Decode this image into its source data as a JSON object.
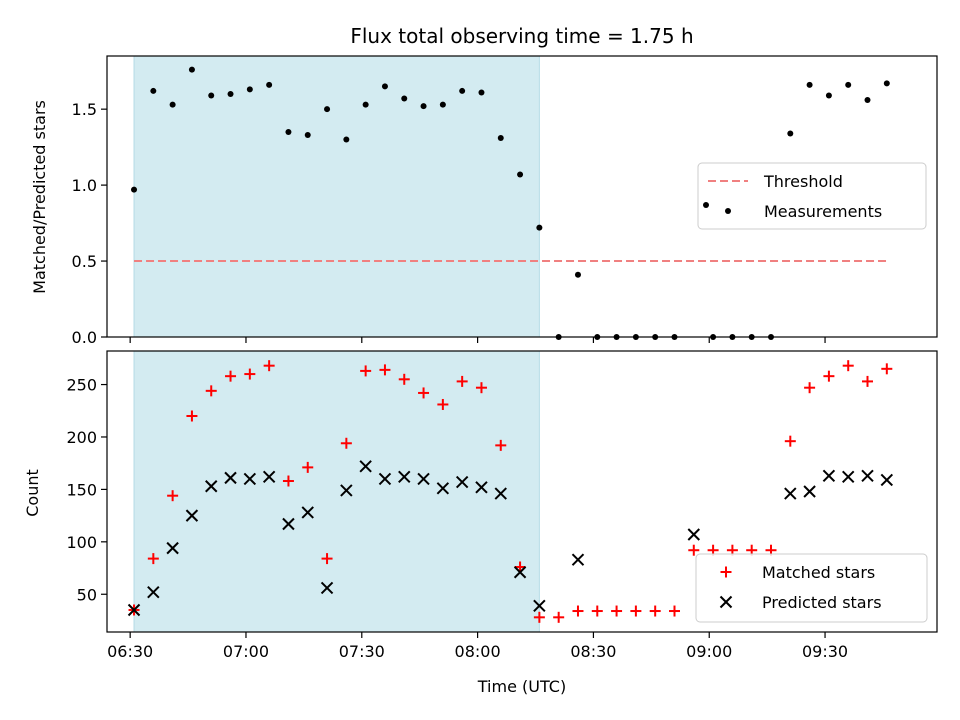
{
  "chart_data": [
    {
      "type": "scatter",
      "title": "Flux total observing time = 1.75 h",
      "ylabel": "Matched/Predicted stars",
      "xlabel": "",
      "ylim": [
        0,
        1.85
      ],
      "xlim": [
        "06:24",
        "09:59"
      ],
      "yticks": [
        "0.0",
        "0.5",
        "1.0",
        "1.5"
      ],
      "ytick_values": [
        0,
        0.5,
        1.0,
        1.5
      ],
      "legend_position": "center-right",
      "shaded_region": {
        "start": "06:31",
        "end": "08:16",
        "color": "#d3ebf1"
      },
      "series": [
        {
          "name": "Threshold",
          "style": "dashed-line",
          "color": "#f08080",
          "points": [
            {
              "x": "06:31",
              "y": 0.5
            },
            {
              "x": "09:46",
              "y": 0.5
            }
          ]
        },
        {
          "name": "Measurements",
          "style": "dot",
          "color": "#000000",
          "points": [
            {
              "x": "06:31",
              "y": 0.97
            },
            {
              "x": "06:36",
              "y": 1.62
            },
            {
              "x": "06:41",
              "y": 1.53
            },
            {
              "x": "06:46",
              "y": 1.76
            },
            {
              "x": "06:51",
              "y": 1.59
            },
            {
              "x": "06:56",
              "y": 1.6
            },
            {
              "x": "07:01",
              "y": 1.63
            },
            {
              "x": "07:06",
              "y": 1.66
            },
            {
              "x": "07:11",
              "y": 1.35
            },
            {
              "x": "07:16",
              "y": 1.33
            },
            {
              "x": "07:21",
              "y": 1.5
            },
            {
              "x": "07:26",
              "y": 1.3
            },
            {
              "x": "07:31",
              "y": 1.53
            },
            {
              "x": "07:36",
              "y": 1.65
            },
            {
              "x": "07:41",
              "y": 1.57
            },
            {
              "x": "07:46",
              "y": 1.52
            },
            {
              "x": "07:51",
              "y": 1.53
            },
            {
              "x": "07:56",
              "y": 1.62
            },
            {
              "x": "08:01",
              "y": 1.61
            },
            {
              "x": "08:06",
              "y": 1.31
            },
            {
              "x": "08:11",
              "y": 1.07
            },
            {
              "x": "08:16",
              "y": 0.72
            },
            {
              "x": "08:21",
              "y": 0.0
            },
            {
              "x": "08:26",
              "y": 0.41
            },
            {
              "x": "08:31",
              "y": 0.0
            },
            {
              "x": "08:36",
              "y": 0.0
            },
            {
              "x": "08:41",
              "y": 0.0
            },
            {
              "x": "08:46",
              "y": 0.0
            },
            {
              "x": "08:51",
              "y": 0.0
            },
            {
              "x": "09:01",
              "y": 0.0
            },
            {
              "x": "09:06",
              "y": 0.0
            },
            {
              "x": "09:11",
              "y": 0.0
            },
            {
              "x": "09:16",
              "y": 0.0
            },
            {
              "x": "09:21",
              "y": 1.34
            },
            {
              "x": "09:26",
              "y": 1.66
            },
            {
              "x": "09:31",
              "y": 1.59
            },
            {
              "x": "09:36",
              "y": 1.66
            },
            {
              "x": "09:41",
              "y": 1.56
            },
            {
              "x": "09:46",
              "y": 1.67
            }
          ]
        }
      ]
    },
    {
      "type": "scatter",
      "title": "",
      "ylabel": "Count",
      "xlabel": "Time (UTC)",
      "ylim": [
        14,
        282
      ],
      "xlim": [
        "06:24",
        "09:59"
      ],
      "yticks": [
        "50",
        "100",
        "150",
        "200",
        "250"
      ],
      "ytick_values": [
        50,
        100,
        150,
        200,
        250
      ],
      "xticks": [
        "06:30",
        "07:00",
        "07:30",
        "08:00",
        "08:30",
        "09:00",
        "09:30"
      ],
      "legend_position": "lower-right",
      "shaded_region": {
        "start": "06:31",
        "end": "08:16",
        "color": "#d3ebf1"
      },
      "series": [
        {
          "name": "Matched stars",
          "style": "plus",
          "color": "#ff0000",
          "points": [
            {
              "x": "06:31",
              "y": 35
            },
            {
              "x": "06:36",
              "y": 84
            },
            {
              "x": "06:41",
              "y": 144
            },
            {
              "x": "06:46",
              "y": 220
            },
            {
              "x": "06:51",
              "y": 244
            },
            {
              "x": "06:56",
              "y": 258
            },
            {
              "x": "07:01",
              "y": 260
            },
            {
              "x": "07:06",
              "y": 268
            },
            {
              "x": "07:11",
              "y": 158
            },
            {
              "x": "07:16",
              "y": 171
            },
            {
              "x": "07:21",
              "y": 84
            },
            {
              "x": "07:26",
              "y": 194
            },
            {
              "x": "07:31",
              "y": 263
            },
            {
              "x": "07:36",
              "y": 264
            },
            {
              "x": "07:41",
              "y": 255
            },
            {
              "x": "07:46",
              "y": 242
            },
            {
              "x": "07:51",
              "y": 231
            },
            {
              "x": "07:56",
              "y": 253
            },
            {
              "x": "08:01",
              "y": 247
            },
            {
              "x": "08:06",
              "y": 192
            },
            {
              "x": "08:11",
              "y": 76
            },
            {
              "x": "08:16",
              "y": 28
            },
            {
              "x": "08:21",
              "y": 28
            },
            {
              "x": "08:26",
              "y": 34
            },
            {
              "x": "08:31",
              "y": 34
            },
            {
              "x": "08:36",
              "y": 34
            },
            {
              "x": "08:41",
              "y": 34
            },
            {
              "x": "08:46",
              "y": 34
            },
            {
              "x": "08:51",
              "y": 34
            },
            {
              "x": "08:56",
              "y": 92
            },
            {
              "x": "09:01",
              "y": 92
            },
            {
              "x": "09:06",
              "y": 92
            },
            {
              "x": "09:11",
              "y": 92
            },
            {
              "x": "09:16",
              "y": 92
            },
            {
              "x": "09:21",
              "y": 196
            },
            {
              "x": "09:26",
              "y": 247
            },
            {
              "x": "09:31",
              "y": 258
            },
            {
              "x": "09:36",
              "y": 268
            },
            {
              "x": "09:41",
              "y": 253
            },
            {
              "x": "09:46",
              "y": 265
            }
          ]
        },
        {
          "name": "Predicted stars",
          "style": "x",
          "color": "#000000",
          "points": [
            {
              "x": "06:31",
              "y": 35
            },
            {
              "x": "06:36",
              "y": 52
            },
            {
              "x": "06:41",
              "y": 94
            },
            {
              "x": "06:46",
              "y": 125
            },
            {
              "x": "06:51",
              "y": 153
            },
            {
              "x": "06:56",
              "y": 161
            },
            {
              "x": "07:01",
              "y": 160
            },
            {
              "x": "07:06",
              "y": 162
            },
            {
              "x": "07:11",
              "y": 117
            },
            {
              "x": "07:16",
              "y": 128
            },
            {
              "x": "07:21",
              "y": 56
            },
            {
              "x": "07:26",
              "y": 149
            },
            {
              "x": "07:31",
              "y": 172
            },
            {
              "x": "07:36",
              "y": 160
            },
            {
              "x": "07:41",
              "y": 162
            },
            {
              "x": "07:46",
              "y": 160
            },
            {
              "x": "07:51",
              "y": 151
            },
            {
              "x": "07:56",
              "y": 157
            },
            {
              "x": "08:01",
              "y": 152
            },
            {
              "x": "08:06",
              "y": 146
            },
            {
              "x": "08:11",
              "y": 71
            },
            {
              "x": "08:16",
              "y": 39
            },
            {
              "x": "08:26",
              "y": 83
            },
            {
              "x": "08:56",
              "y": 107
            },
            {
              "x": "09:21",
              "y": 146
            },
            {
              "x": "09:26",
              "y": 148
            },
            {
              "x": "09:31",
              "y": 163
            },
            {
              "x": "09:36",
              "y": 162
            },
            {
              "x": "09:41",
              "y": 163
            },
            {
              "x": "09:46",
              "y": 159
            }
          ]
        }
      ]
    }
  ]
}
